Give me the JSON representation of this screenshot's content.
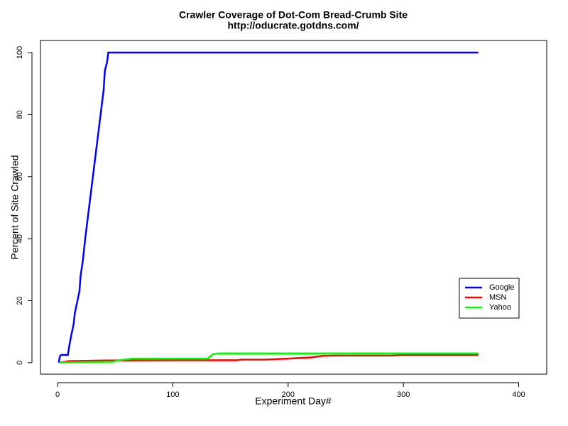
{
  "chart_data": {
    "type": "line",
    "title": "Crawler Coverage of Dot-Com Bread-Crumb Site",
    "subtitle": "http://oducrate.gotdns.com/",
    "x_label": "Experiment Day#",
    "y_label": "Percent of Site Crawled",
    "xlim": [
      -14.8,
      424.3
    ],
    "ylim": [
      -3.7,
      103.9
    ],
    "xticks": [
      0,
      100,
      200,
      300,
      400
    ],
    "yticks": [
      0,
      20,
      40,
      60,
      80,
      100
    ],
    "legend": "right",
    "series": [
      {
        "name": "Google",
        "color": "#0000ff",
        "x": [
          1,
          2,
          3,
          9,
          10,
          12,
          14,
          15,
          17,
          19,
          20,
          22,
          24,
          26,
          28,
          30,
          32,
          34,
          36,
          38,
          40,
          41,
          43,
          44,
          365
        ],
        "values": [
          0,
          2,
          2.5,
          2.5,
          5,
          9,
          12.5,
          16,
          19.5,
          23,
          28,
          33,
          40,
          46,
          52,
          58,
          64,
          70,
          76,
          82,
          88,
          94,
          97,
          100,
          100
        ]
      },
      {
        "name": "MSN",
        "color": "#ff0000",
        "x": [
          1,
          10,
          40,
          100,
          155,
          160,
          180,
          200,
          220,
          230,
          240,
          290,
          300,
          365
        ],
        "values": [
          0,
          0.5,
          0.7,
          0.8,
          0.8,
          1,
          1,
          1.3,
          1.7,
          2.2,
          2.3,
          2.3,
          2.5,
          2.5
        ]
      },
      {
        "name": "Yahoo",
        "color": "#00ff00",
        "x": [
          1,
          20,
          48,
          55,
          65,
          130,
          135,
          140,
          365
        ],
        "values": [
          0,
          0.2,
          0.3,
          0.9,
          1.3,
          1.3,
          2.8,
          3,
          3
        ]
      }
    ]
  }
}
